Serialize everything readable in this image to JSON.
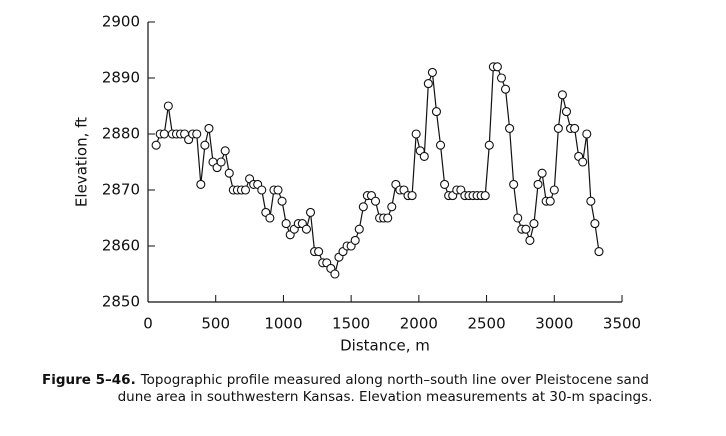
{
  "chart_data": {
    "type": "line",
    "xlabel": "Distance, m",
    "ylabel": "Elevation, ft",
    "x": [
      60,
      90,
      120,
      150,
      180,
      210,
      240,
      270,
      300,
      330,
      360,
      390,
      420,
      450,
      480,
      510,
      540,
      570,
      600,
      630,
      660,
      690,
      720,
      750,
      780,
      810,
      840,
      870,
      900,
      930,
      960,
      990,
      1020,
      1050,
      1080,
      1110,
      1140,
      1170,
      1200,
      1230,
      1260,
      1290,
      1320,
      1350,
      1380,
      1410,
      1440,
      1470,
      1500,
      1530,
      1560,
      1590,
      1620,
      1650,
      1680,
      1710,
      1740,
      1770,
      1800,
      1830,
      1860,
      1890,
      1920,
      1950,
      1980,
      2010,
      2040,
      2070,
      2100,
      2130,
      2160,
      2190,
      2220,
      2250,
      2280,
      2310,
      2340,
      2370,
      2400,
      2430,
      2460,
      2490,
      2520,
      2550,
      2580,
      2610,
      2640,
      2670,
      2700,
      2730,
      2760,
      2790,
      2820,
      2850,
      2880,
      2910,
      2940,
      2970,
      3000,
      3030,
      3060,
      3090,
      3120,
      3150,
      3180,
      3210,
      3240,
      3270,
      3300,
      3330
    ],
    "series": [
      {
        "color": "#111111",
        "values": [
          2878,
          2880,
          2880,
          2885,
          2880,
          2880,
          2880,
          2880,
          2879,
          2880,
          2880,
          2871,
          2878,
          2881,
          2875,
          2874,
          2875,
          2877,
          2873,
          2870,
          2870,
          2870,
          2870,
          2872,
          2871,
          2871,
          2870,
          2866,
          2865,
          2870,
          2870,
          2868,
          2864,
          2862,
          2863,
          2864,
          2864,
          2863,
          2866,
          2859,
          2859,
          2857,
          2857,
          2856,
          2855,
          2858,
          2859,
          2860,
          2860,
          2861,
          2863,
          2867,
          2869,
          2869,
          2868,
          2865,
          2865,
          2865,
          2867,
          2871,
          2870,
          2870,
          2869,
          2869,
          2880,
          2877,
          2876,
          2889,
          2891,
          2884,
          2878,
          2871,
          2869,
          2869,
          2870,
          2870,
          2869,
          2869,
          2869,
          2869,
          2869,
          2869,
          2878,
          2892,
          2892,
          2890,
          2888,
          2881,
          2871,
          2865,
          2863,
          2863,
          2861,
          2864,
          2871,
          2873,
          2868,
          2868,
          2870,
          2881,
          2887,
          2884,
          2881,
          2881,
          2876,
          2875,
          2880,
          2868,
          2864,
          2859
        ]
      }
    ],
    "xlim": [
      0,
      3500
    ],
    "xticks": [
      0,
      500,
      1000,
      1500,
      2000,
      2500,
      3000,
      3500
    ],
    "ylim": [
      2850,
      2900
    ],
    "yticks": [
      2850,
      2860,
      2870,
      2880,
      2890,
      2900
    ],
    "caption": {
      "label": "Figure 5–46.",
      "lines": [
        "Topographic profile measured along north–south line over Pleistocene sand",
        "dune area in southwestern Kansas. Elevation measurements at 30-m spacings."
      ]
    }
  }
}
